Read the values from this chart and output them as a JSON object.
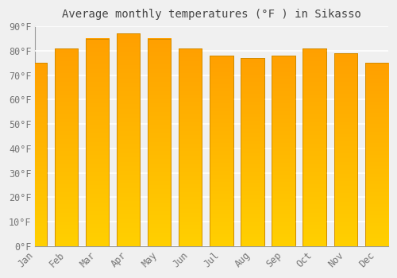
{
  "title": "Average monthly temperatures (°F ) in Sikasso",
  "months": [
    "Jan",
    "Feb",
    "Mar",
    "Apr",
    "May",
    "Jun",
    "Jul",
    "Aug",
    "Sep",
    "Oct",
    "Nov",
    "Dec"
  ],
  "values": [
    75,
    81,
    85,
    87,
    85,
    81,
    78,
    77,
    78,
    81,
    79,
    75
  ],
  "bar_color_bottom": "#FFD000",
  "bar_color_top": "#FFA000",
  "bar_edge_color": "#CC8800",
  "ylim": [
    0,
    90
  ],
  "yticks": [
    0,
    10,
    20,
    30,
    40,
    50,
    60,
    70,
    80,
    90
  ],
  "ytick_labels": [
    "0°F",
    "10°F",
    "20°F",
    "30°F",
    "40°F",
    "50°F",
    "60°F",
    "70°F",
    "80°F",
    "90°F"
  ],
  "background_color": "#f0f0f0",
  "grid_color": "#ffffff",
  "title_fontsize": 10,
  "tick_fontsize": 8.5,
  "bar_width": 0.75
}
